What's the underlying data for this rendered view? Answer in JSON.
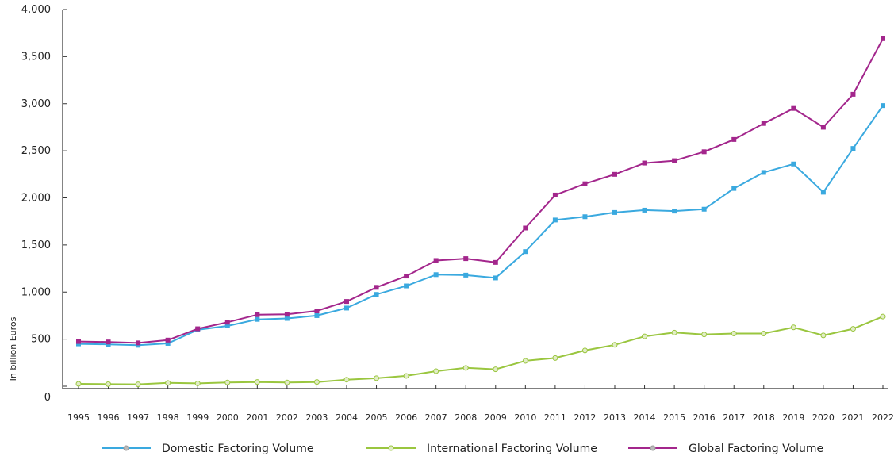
{
  "chart_data": {
    "type": "line",
    "title": "",
    "xlabel": "",
    "ylabel": "In billion Euros",
    "ylim": [
      0,
      4000
    ],
    "yticks": [
      0,
      500,
      1000,
      1500,
      2000,
      2500,
      3000,
      3500,
      4000
    ],
    "ytick_labels": [
      "0",
      "500",
      "1,000",
      "1,500",
      "2,000",
      "2,500",
      "3,000",
      "3,500",
      "4,000"
    ],
    "grid": false,
    "legend_position": "bottom",
    "categories": [
      "1995",
      "1996",
      "1997",
      "1998",
      "1999",
      "2000",
      "2001",
      "2002",
      "2003",
      "2004",
      "2005",
      "2006",
      "2007",
      "2008",
      "2009",
      "2010",
      "2011",
      "2012",
      "2013",
      "2014",
      "2015",
      "2016",
      "2017",
      "2018",
      "2019",
      "2020",
      "2021",
      "2022"
    ],
    "series": [
      {
        "name": "Domestic Factoring Volume",
        "color": "#3aa9df",
        "marker_fill": "#3aa9df",
        "values": [
          450,
          445,
          435,
          455,
          600,
          640,
          710,
          720,
          750,
          830,
          975,
          1065,
          1185,
          1180,
          1150,
          1430,
          1765,
          1800,
          1845,
          1870,
          1860,
          1880,
          2100,
          2270,
          2360,
          2060,
          2525,
          2980
        ]
      },
      {
        "name": "International Factoring Volume",
        "color": "#9ac63f",
        "marker_fill": "#e2edc7",
        "values": [
          25,
          22,
          20,
          35,
          30,
          40,
          45,
          40,
          45,
          70,
          85,
          110,
          160,
          195,
          180,
          270,
          300,
          380,
          440,
          530,
          570,
          550,
          560,
          560,
          625,
          540,
          610,
          740
        ]
      },
      {
        "name": "Global Factoring Volume",
        "color": "#a3268c",
        "marker_fill": "#a3268c",
        "values": [
          475,
          470,
          460,
          490,
          610,
          680,
          760,
          765,
          800,
          900,
          1050,
          1170,
          1335,
          1355,
          1315,
          1680,
          2030,
          2150,
          2250,
          2370,
          2395,
          2490,
          2620,
          2790,
          2950,
          2750,
          3100,
          3690
        ]
      }
    ]
  }
}
